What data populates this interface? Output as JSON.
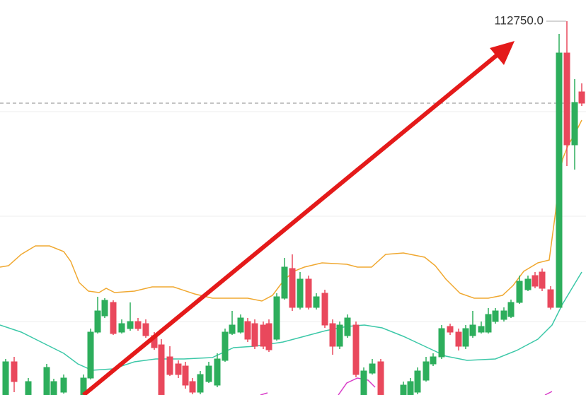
{
  "price_label": "112750.0"
}
